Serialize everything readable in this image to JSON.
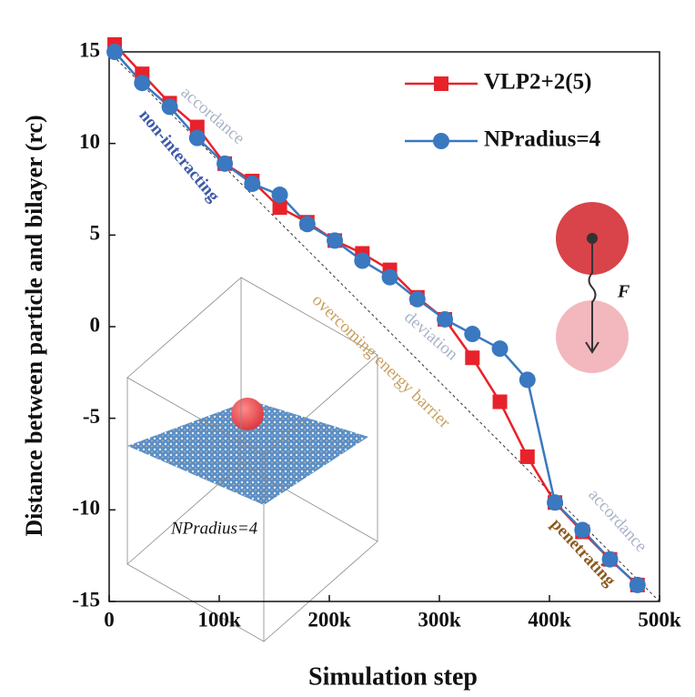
{
  "chart_data": {
    "type": "line",
    "x_label": "Simulation step",
    "y_label": "Distance between particle and bilayer (rc)",
    "x": [
      5000,
      30000,
      55000,
      80000,
      105000,
      130000,
      155000,
      180000,
      205000,
      230000,
      255000,
      280000,
      305000,
      330000,
      355000,
      380000,
      405000,
      430000,
      455000,
      480000
    ],
    "series": [
      {
        "name": "VLP2+2(5)",
        "color": "#e8222a",
        "marker": "square",
        "values": [
          15.4,
          13.8,
          12.2,
          10.9,
          8.9,
          7.95,
          6.5,
          5.7,
          4.7,
          4.0,
          3.1,
          1.6,
          0.4,
          -1.7,
          -4.1,
          -7.1,
          -9.6,
          -11.2,
          -12.7,
          -14.1
        ]
      },
      {
        "name": "NPradius=4",
        "color": "#3a78c0",
        "marker": "circle",
        "values": [
          15.0,
          13.3,
          12.0,
          10.3,
          8.9,
          7.8,
          7.2,
          5.6,
          4.7,
          3.6,
          2.7,
          1.5,
          0.4,
          -0.4,
          -1.2,
          -2.9,
          -9.6,
          -11.1,
          -12.7,
          -14.1
        ]
      }
    ],
    "reference_line": {
      "x": [
        0,
        500000
      ],
      "y": [
        15,
        -15
      ]
    },
    "xlim": [
      0,
      500000
    ],
    "ylim": [
      -15,
      15
    ],
    "xticks": [
      0,
      {
        "value": 100000,
        "label": "100k"
      },
      {
        "value": 200000,
        "label": "200k"
      },
      {
        "value": 300000,
        "label": "300k"
      },
      {
        "value": 400000,
        "label": "400k"
      },
      {
        "value": 500000,
        "label": "500k"
      }
    ],
    "yticks": [
      15,
      10,
      5,
      0,
      -5,
      -10,
      -15
    ],
    "legend": "upper right",
    "annotations": [
      "accordance",
      "non-interacting",
      "overcoming energy barrier",
      "deviation",
      "accordance",
      "penetrating"
    ],
    "inset_label": "NPradius=4",
    "force_label": "F"
  }
}
